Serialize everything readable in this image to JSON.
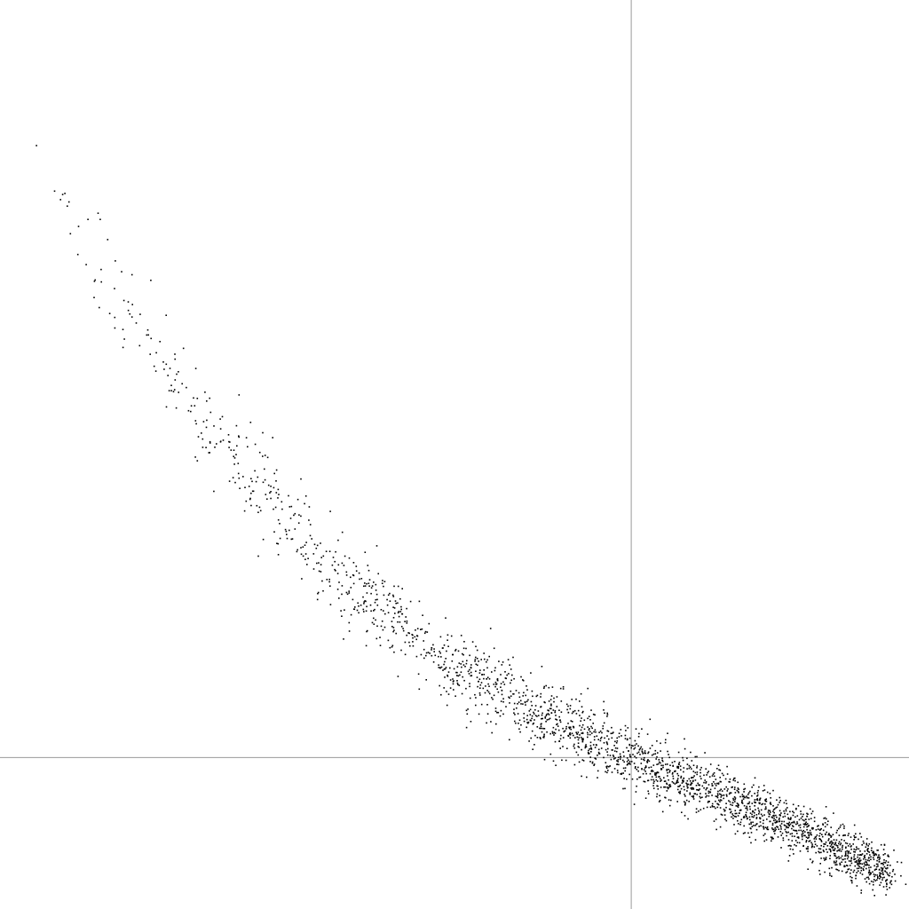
{
  "chart_data": {
    "type": "scatter",
    "title": "",
    "xlabel": "",
    "ylabel": "",
    "grid": false,
    "legend": "none",
    "axis_lines": "crosshair",
    "xlim": [
      -1.0,
      0.44
    ],
    "ylim": [
      -0.2,
      1.0
    ],
    "crosshair": {
      "x": 0.0,
      "y": 0.0
    },
    "point_count": 2500,
    "trend": {
      "description_points": [
        {
          "x": -1.0,
          "y": 0.98
        },
        {
          "x": -0.9,
          "y": 0.73
        },
        {
          "x": -0.7,
          "y": 0.47
        },
        {
          "x": -0.5,
          "y": 0.27
        },
        {
          "x": -0.3,
          "y": 0.13
        },
        {
          "x": -0.1,
          "y": 0.04
        },
        {
          "x": 0.0,
          "y": 0.0
        },
        {
          "x": 0.2,
          "y": -0.07
        },
        {
          "x": 0.4,
          "y": -0.15
        }
      ],
      "spread": 0.025
    },
    "marker_color": "#000000",
    "axis_color": "#999999"
  }
}
